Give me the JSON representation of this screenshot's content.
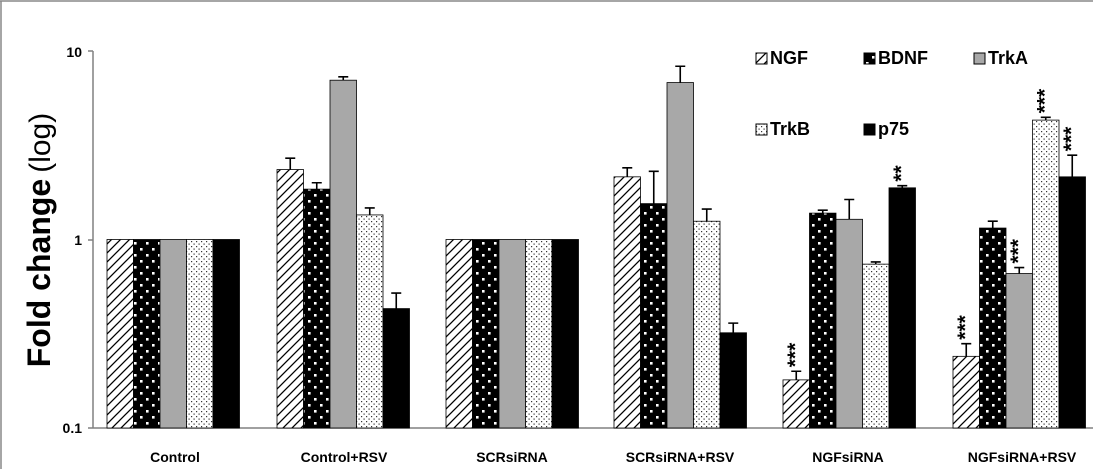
{
  "chart_data": {
    "type": "bar",
    "yscale": "log",
    "ylim": [
      0.1,
      10
    ],
    "ylabel": "Fold change",
    "ylabel_unit": "(log)",
    "yticks": [
      "0.1",
      "1",
      "10"
    ],
    "grid": false,
    "legend_position": "top-right",
    "categories": [
      "Control",
      "Control+RSV",
      "SCRsiRNA",
      "SCRsiRNA+RSV",
      "NGFsiRNA",
      "NGFsiRNA+RSV"
    ],
    "series": [
      {
        "name": "NGF",
        "pattern": "hatch-diagonal",
        "values": [
          1,
          2.35,
          1,
          2.15,
          0.18,
          0.24
        ],
        "errors": [
          0,
          0.35,
          0,
          0.25,
          0.02,
          0.04
        ],
        "annotations": [
          "",
          "",
          "",
          "",
          "***",
          "***"
        ]
      },
      {
        "name": "BDNF",
        "pattern": "dots-white-on-black",
        "values": [
          1,
          1.85,
          1,
          1.55,
          1.38,
          1.15
        ],
        "errors": [
          0,
          0.15,
          0,
          0.75,
          0.05,
          0.1
        ],
        "annotations": [
          "",
          "",
          "",
          "",
          "",
          ""
        ]
      },
      {
        "name": "TrkA",
        "pattern": "solid-gray",
        "values": [
          1,
          7.0,
          1,
          6.8,
          1.28,
          0.66
        ],
        "errors": [
          0,
          0.3,
          0,
          1.5,
          0.35,
          0.05
        ],
        "annotations": [
          "",
          "",
          "",
          "",
          "",
          "***"
        ]
      },
      {
        "name": "TrkB",
        "pattern": "dots-black-on-white",
        "values": [
          1,
          1.35,
          1,
          1.25,
          0.74,
          4.3
        ],
        "errors": [
          0,
          0.12,
          0,
          0.2,
          0.02,
          0.15
        ],
        "annotations": [
          "",
          "",
          "",
          "",
          "",
          "***"
        ]
      },
      {
        "name": "p75",
        "pattern": "solid-black",
        "values": [
          1,
          0.43,
          1,
          0.32,
          1.88,
          2.15
        ],
        "errors": [
          0,
          0.09,
          0,
          0.04,
          0.05,
          0.65
        ],
        "annotations": [
          "",
          "",
          "",
          "",
          "**",
          "***"
        ]
      }
    ],
    "colors": {
      "TrkA": "#a8a8a8",
      "p75": "#000000",
      "axis": "#808080"
    }
  }
}
